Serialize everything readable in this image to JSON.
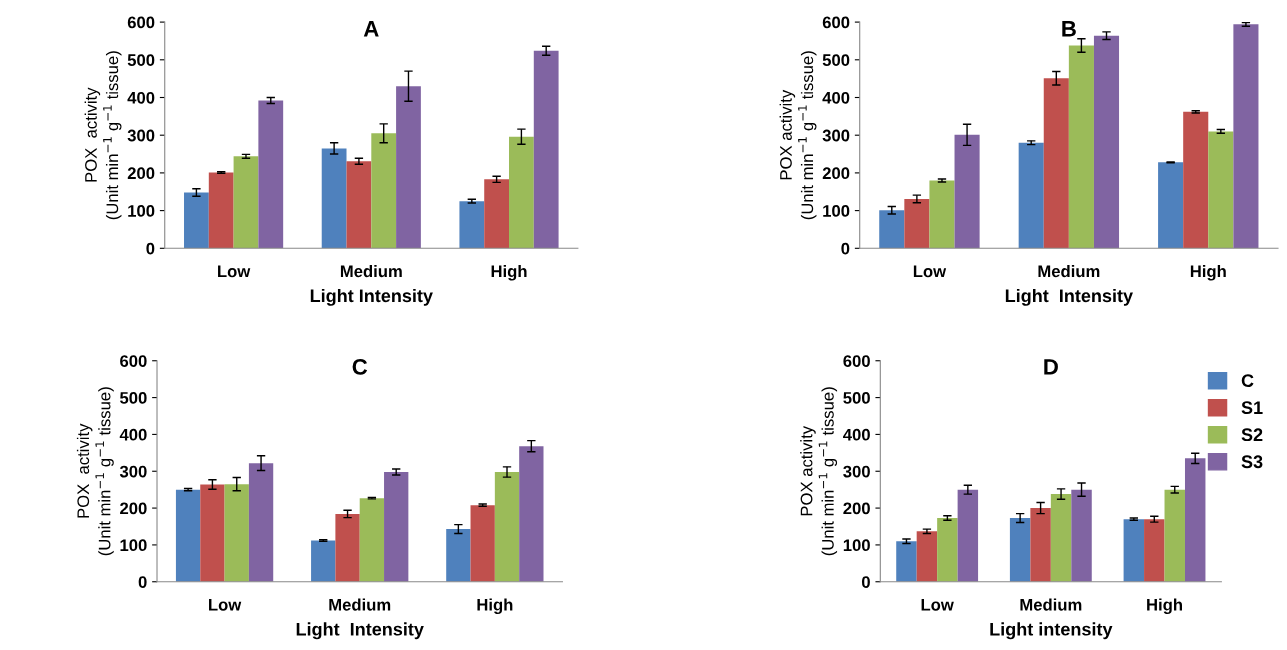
{
  "chart_data": [
    {
      "type": "bar",
      "title": "A",
      "xlabel": "Light Intensity",
      "ylabel": "POX  activity\n(Unit min$^{−1}$ g$^{−1}$ tissue)",
      "categories": [
        "Low",
        "Medium",
        "High"
      ],
      "ylim": [
        0,
        600
      ],
      "yticks": [
        0,
        100,
        200,
        300,
        400,
        500,
        600
      ],
      "series": [
        {
          "color": "#4f81bd",
          "values": [
            148,
            265,
            125
          ],
          "errors": [
            10,
            15,
            5
          ]
        },
        {
          "color": "#c0504d",
          "values": [
            201,
            231,
            183
          ],
          "errors": [
            2,
            8,
            8
          ]
        },
        {
          "color": "#9bbb59",
          "values": [
            244,
            305,
            296
          ],
          "errors": [
            5,
            25,
            20
          ]
        },
        {
          "color": "#8064a2",
          "values": [
            392,
            430,
            524
          ],
          "errors": [
            8,
            40,
            12
          ]
        }
      ]
    },
    {
      "type": "bar",
      "title": "B",
      "xlabel": "Light  Intensity",
      "ylabel": "POX activity\n(Unit min$^{−1}$ g$^{−1}$ tissue)",
      "categories": [
        "Low",
        "Medium",
        "High"
      ],
      "ylim": [
        0,
        600
      ],
      "yticks": [
        0,
        100,
        200,
        300,
        400,
        500,
        600
      ],
      "series": [
        {
          "color": "#4f81bd",
          "values": [
            101,
            280,
            228
          ],
          "errors": [
            10,
            5,
            1
          ]
        },
        {
          "color": "#c0504d",
          "values": [
            131,
            451,
            362
          ],
          "errors": [
            10,
            18,
            3
          ]
        },
        {
          "color": "#9bbb59",
          "values": [
            180,
            538,
            310
          ],
          "errors": [
            4,
            18,
            5
          ]
        },
        {
          "color": "#8064a2",
          "values": [
            301,
            564,
            594
          ],
          "errors": [
            28,
            10,
            5
          ]
        }
      ]
    },
    {
      "type": "bar",
      "title": "C",
      "xlabel": "Light  Intensity",
      "ylabel": "POX  activity\n(Unit min$^{−1}$ g$^{−1}$ tissue)",
      "categories": [
        "Low",
        "Medium",
        "High"
      ],
      "ylim": [
        0,
        600
      ],
      "yticks": [
        0,
        100,
        200,
        300,
        400,
        500,
        600
      ],
      "series": [
        {
          "color": "#4f81bd",
          "values": [
            250,
            112,
            143
          ],
          "errors": [
            3,
            2,
            12
          ]
        },
        {
          "color": "#c0504d",
          "values": [
            264,
            184,
            208
          ],
          "errors": [
            13,
            10,
            3
          ]
        },
        {
          "color": "#9bbb59",
          "values": [
            265,
            227,
            298
          ],
          "errors": [
            18,
            2,
            14
          ]
        },
        {
          "color": "#8064a2",
          "values": [
            322,
            298,
            368
          ],
          "errors": [
            20,
            8,
            15
          ]
        }
      ]
    },
    {
      "type": "bar",
      "title": "D",
      "xlabel": "Light intensity",
      "ylabel": "POX activity\n(Unit min$^{−1}$ g$^{−1}$ tissue)",
      "categories": [
        "Low",
        "Medium",
        "High"
      ],
      "ylim": [
        0,
        600
      ],
      "yticks": [
        0,
        100,
        200,
        300,
        400,
        500,
        600
      ],
      "legend": "top right",
      "series": [
        {
          "name": "C",
          "color": "#4f81bd",
          "values": [
            110,
            173,
            170
          ],
          "errors": [
            6,
            12,
            3
          ]
        },
        {
          "name": "S1",
          "color": "#c0504d",
          "values": [
            137,
            200,
            170
          ],
          "errors": [
            6,
            15,
            8
          ]
        },
        {
          "name": "S2",
          "color": "#9bbb59",
          "values": [
            173,
            238,
            250
          ],
          "errors": [
            6,
            14,
            9
          ]
        },
        {
          "name": "S3",
          "color": "#8064a2",
          "values": [
            250,
            250,
            335
          ],
          "errors": [
            12,
            18,
            14
          ]
        }
      ]
    }
  ]
}
